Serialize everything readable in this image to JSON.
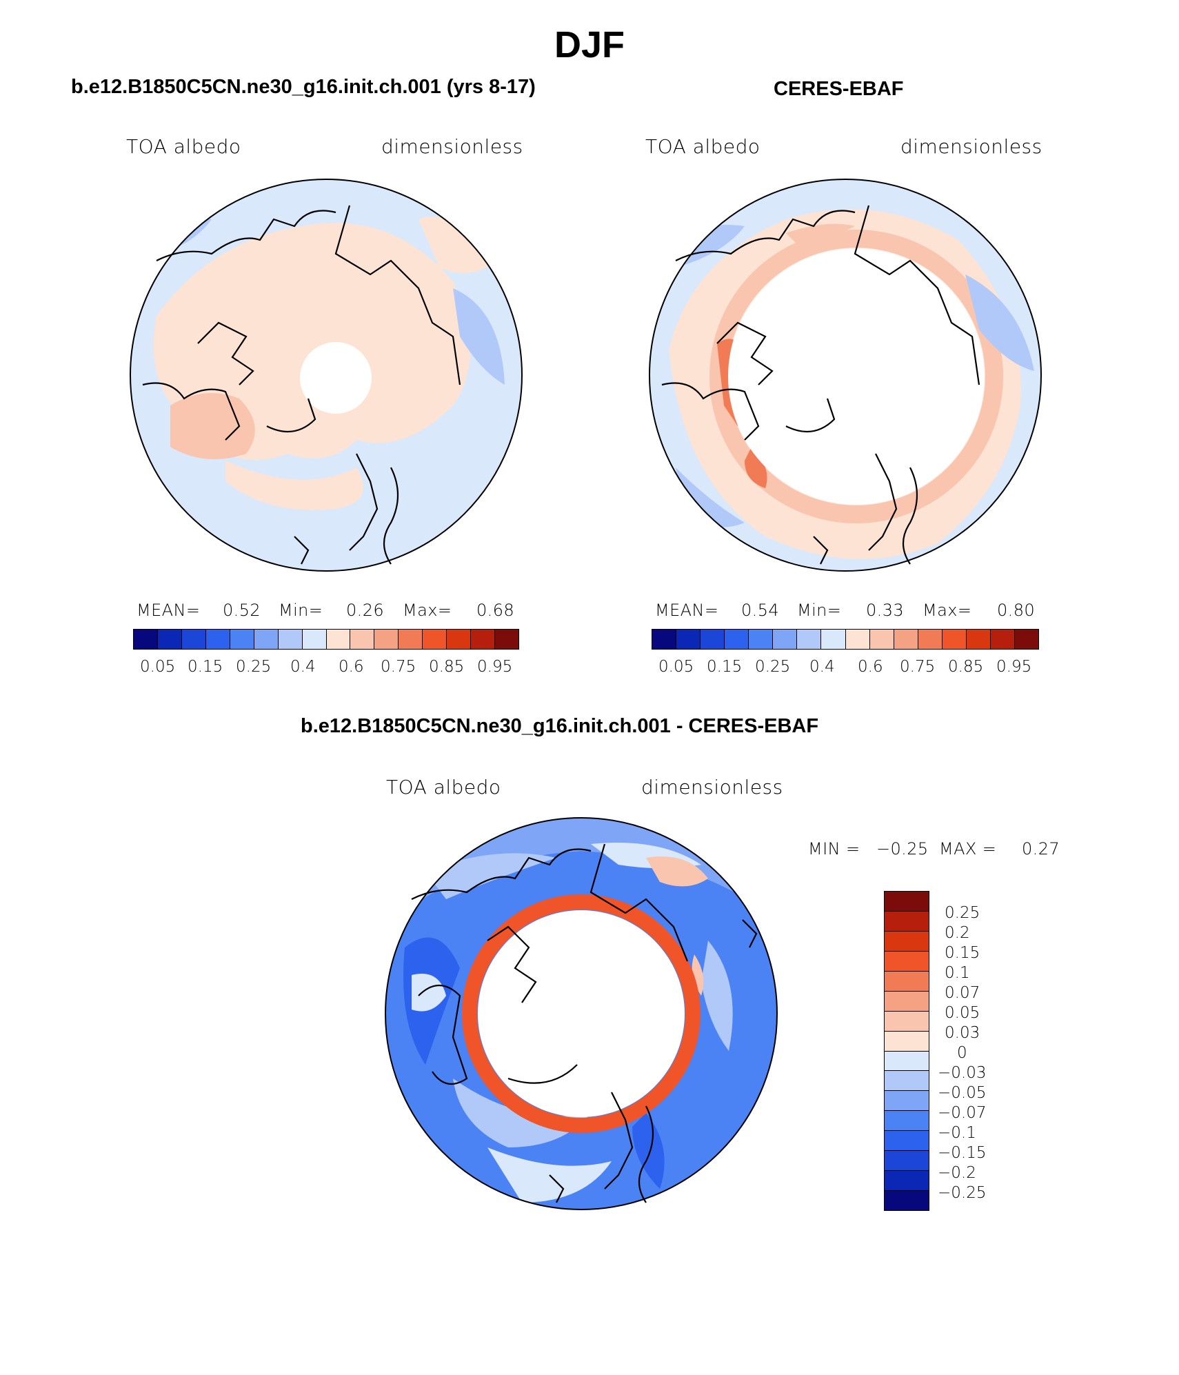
{
  "figure": {
    "title": "DJF"
  },
  "palettes": {
    "full": [
      "#08087e",
      "#0a27b6",
      "#1b46d8",
      "#2c62ee",
      "#4b82f4",
      "#7ea5f6",
      "#b0c9f8",
      "#d9e8fb",
      "#fde3d4",
      "#f9c5ae",
      "#f4a283",
      "#f17b54",
      "#ef5528",
      "#d83710",
      "#b51f0b",
      "#7c0c0a"
    ],
    "diff": [
      "#7c0c0a",
      "#b51f0b",
      "#d83710",
      "#ef5528",
      "#f17b54",
      "#f4a283",
      "#f9c5ae",
      "#fde3d4",
      "#d9e8fb",
      "#b0c9f8",
      "#7ea5f6",
      "#4b82f4",
      "#2c62ee",
      "#1b46d8",
      "#0a27b6",
      "#08087e"
    ]
  },
  "panels": [
    {
      "title": "b.e12.B1850C5CN.ne30_g16.init.ch.001 (yrs 8-17)",
      "variable": "TOA albedo",
      "units": "dimensionless",
      "stats": {
        "mean_label": "MEAN=",
        "mean": "0.52",
        "min_label": "Min=",
        "min": "0.26",
        "max_label": "Max=",
        "max": "0.68"
      },
      "colorbar_ticks": [
        "0.05",
        "0.15",
        "0.25",
        "0.4",
        "0.6",
        "0.75",
        "0.85",
        "0.95"
      ]
    },
    {
      "title": "CERES-EBAF",
      "variable": "TOA albedo",
      "units": "dimensionless",
      "stats": {
        "mean_label": "MEAN=",
        "mean": "0.54",
        "min_label": "Min=",
        "min": "0.33",
        "max_label": "Max=",
        "max": "0.80"
      },
      "colorbar_ticks": [
        "0.05",
        "0.15",
        "0.25",
        "0.4",
        "0.6",
        "0.75",
        "0.85",
        "0.95"
      ]
    },
    {
      "title": "b.e12.B1850C5CN.ne30_g16.init.ch.001 - CERES-EBAF",
      "variable": "TOA albedo",
      "units": "dimensionless",
      "stats": {
        "min_label": "MIN =",
        "min": "−0.25",
        "max_label": "MAX =",
        "max": "0.27"
      },
      "colorbar_ticks": [
        "0.25",
        "0.2",
        "0.15",
        "0.1",
        "0.07",
        "0.05",
        "0.03",
        "0",
        "−0.03",
        "−0.05",
        "−0.07",
        "−0.1",
        "−0.15",
        "−0.2",
        "−0.25"
      ]
    }
  ]
}
